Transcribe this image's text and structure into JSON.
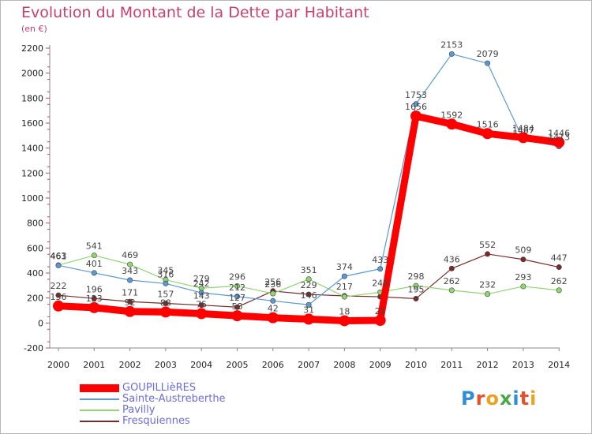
{
  "title": "Evolution du Montant de la Dette par Habitant",
  "unit_label": "(en €)",
  "logo": {
    "text": "Proxiti",
    "letter_colors": [
      "#2e8fd8",
      "#e8502a",
      "#f0a020",
      "#4aa84a",
      "#2e8fd8",
      "#e8502a",
      "#f0a020"
    ]
  },
  "chart_data": {
    "type": "line",
    "x": [
      "2000",
      "2001",
      "2002",
      "2003",
      "2004",
      "2005",
      "2006",
      "2007",
      "2008",
      "2009",
      "2010",
      "2011",
      "2012",
      "2013",
      "2014"
    ],
    "ylim": [
      -200,
      2200
    ],
    "y_ticks": [
      -200,
      0,
      200,
      400,
      600,
      800,
      1000,
      1200,
      1400,
      1600,
      1800,
      2000,
      2200
    ],
    "grid": false,
    "legend_position": "bottom-left",
    "series": [
      {
        "name": "Fresquiennes",
        "color": "#7a2a2a",
        "width": 1.2,
        "marker": 3.2,
        "values": [
          222,
          196,
          171,
          157,
          143,
          127,
          256,
          229,
          217,
          210,
          195,
          436,
          552,
          509,
          447
        ],
        "labels": [
          "222",
          "196",
          "171",
          "157",
          "143",
          "127",
          "256",
          "229",
          "217",
          "",
          "195",
          "436",
          "552",
          "509",
          "447"
        ]
      },
      {
        "name": "Pavilly",
        "color": "#8fd870",
        "width": 1.2,
        "marker": 3.2,
        "values": [
          463,
          541,
          469,
          345,
          279,
          296,
          236,
          351,
          210,
          246,
          298,
          262,
          232,
          293,
          262
        ],
        "labels": [
          "463",
          "541",
          "469",
          "345",
          "279",
          "296",
          "236",
          "351",
          "",
          "246",
          "298",
          "262",
          "232",
          "293",
          "262"
        ]
      },
      {
        "name": "Sainte-Austreberthe",
        "color": "#5a9ad4",
        "width": 1.2,
        "marker": 3.2,
        "values": [
          461,
          401,
          343,
          316,
          242,
          212,
          177,
          146,
          374,
          433,
          1753,
          2153,
          2079,
          1467,
          1413
        ],
        "labels": [
          "461",
          "401",
          "343",
          "316",
          "242",
          "212",
          "",
          "146",
          "374",
          "433",
          "1753",
          "2153",
          "2079",
          "1467",
          "1413"
        ]
      },
      {
        "name": "GOUPILLièRES",
        "color": "#ff0000",
        "width": 9,
        "marker": 7,
        "values": [
          136,
          123,
          92,
          88,
          75,
          58,
          42,
          31,
          18,
          21,
          1656,
          1592,
          1516,
          1484,
          1446
        ],
        "labels": [
          "136",
          "123",
          "92",
          "88",
          "75",
          "58",
          "42",
          "31",
          "18",
          "21",
          "1656",
          "1592",
          "1516",
          "1484",
          "1446"
        ]
      }
    ],
    "legend_order": [
      "GOUPILLièRES",
      "Sainte-Austreberthe",
      "Pavilly",
      "Fresquiennes"
    ]
  }
}
